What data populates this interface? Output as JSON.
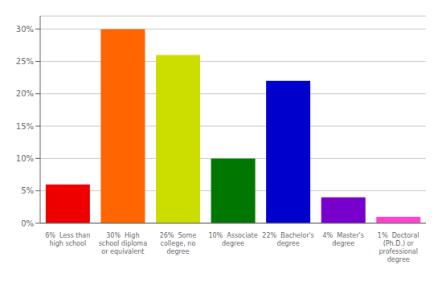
{
  "chart_data": {
    "type": "bar",
    "categories": [
      "6%  Less than\nhigh school",
      "30%  High\nschool diploma\nor equivalent",
      "26%  Some\ncollege, no\ndegree",
      "10%  Associate\ndegree",
      "22%  Bachelor's\ndegree",
      "4%  Master's\ndegree",
      "1%  Doctoral\n(Ph.D.) or\nprofessional\ndegree"
    ],
    "values": [
      6,
      30,
      26,
      10,
      22,
      4,
      1
    ],
    "colors": [
      "#ee0000",
      "#ff6600",
      "#ccdd00",
      "#007700",
      "#0000cc",
      "#7700cc",
      "#ff44cc"
    ],
    "ylim": [
      0,
      32
    ],
    "yticks": [
      {
        "value": 0,
        "label": "0%"
      },
      {
        "value": 5,
        "label": "5%"
      },
      {
        "value": 10,
        "label": "10%"
      },
      {
        "value": 15,
        "label": "15%"
      },
      {
        "value": 20,
        "label": "20%"
      },
      {
        "value": 25,
        "label": "25%"
      },
      {
        "value": 30,
        "label": "30%"
      }
    ],
    "grid": true
  }
}
